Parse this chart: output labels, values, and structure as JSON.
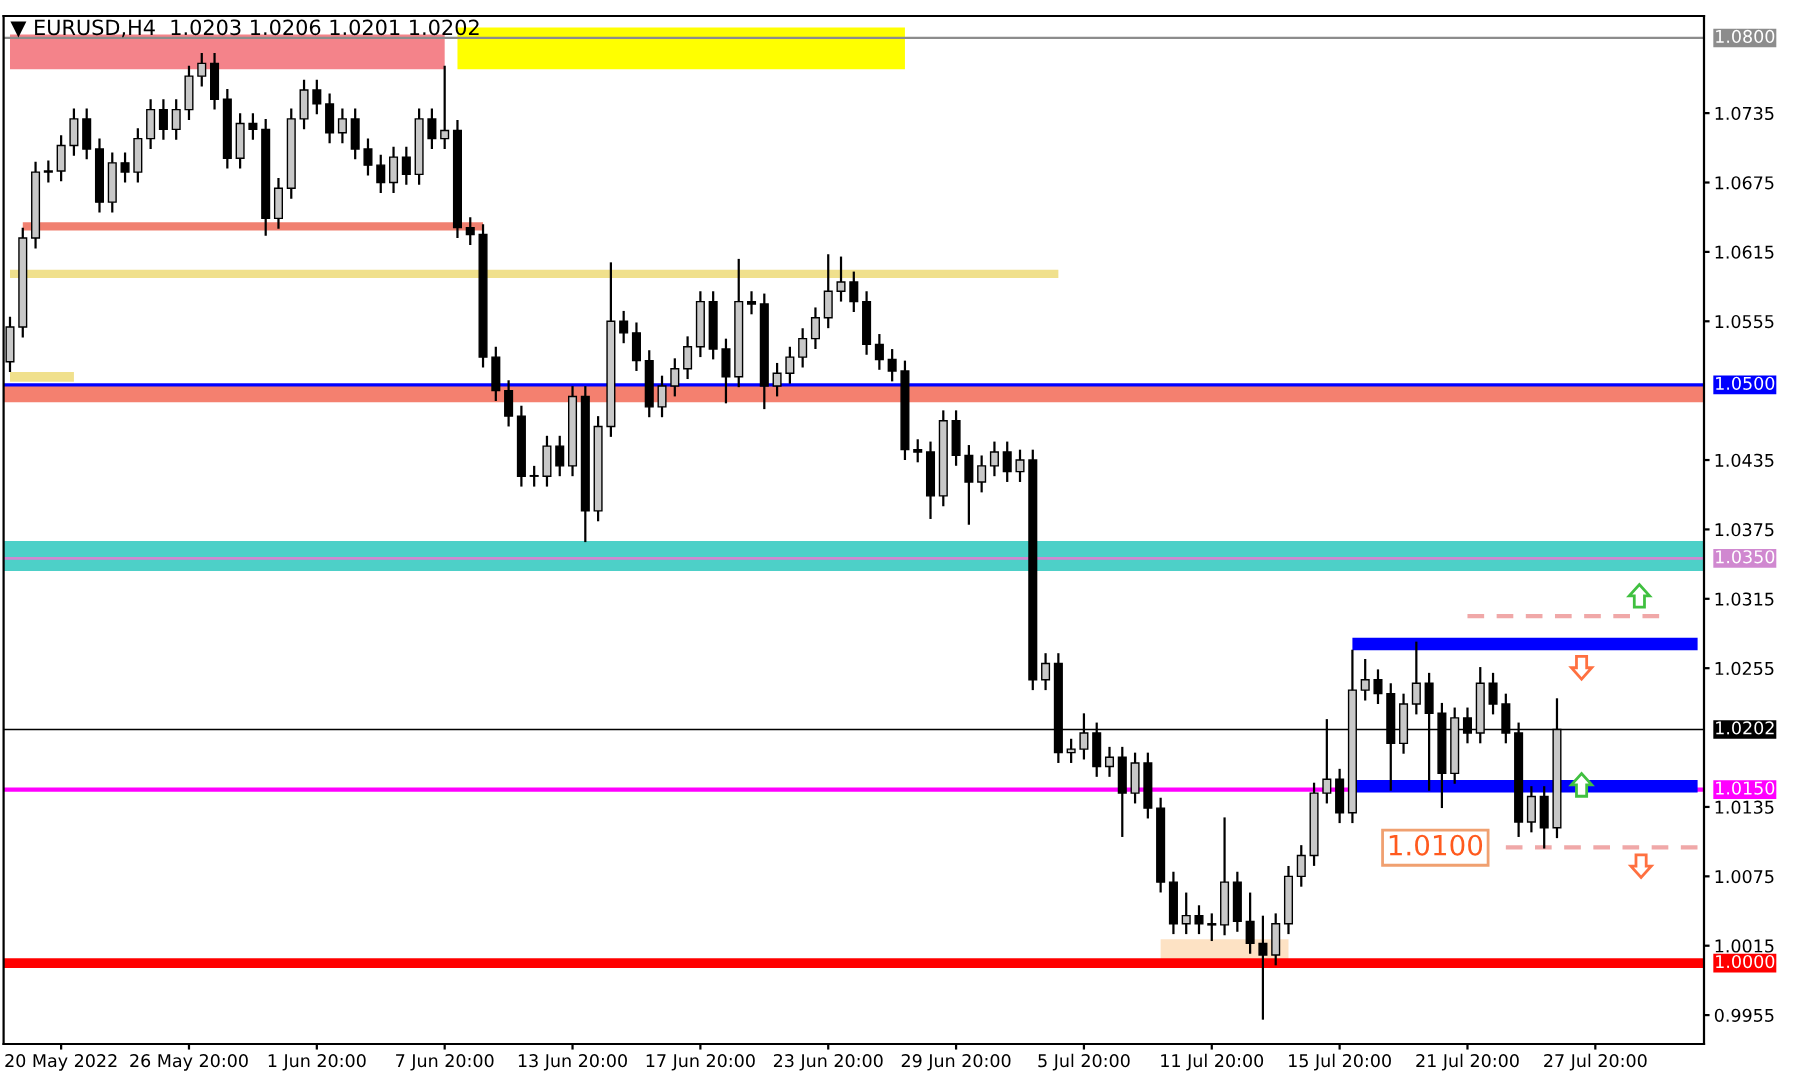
{
  "chart_data": {
    "type": "candlestick",
    "title": "▼ EURUSD,H4  1.0203 1.0206 1.0201 1.0202",
    "categories": [
      null,
      null,
      null,
      null,
      "20 May 2022",
      null,
      null,
      null,
      null,
      null,
      null,
      null,
      null,
      null,
      "26 May 20:00",
      null,
      null,
      null,
      null,
      null,
      null,
      null,
      null,
      null,
      "1 Jun 20:00",
      null,
      null,
      null,
      null,
      null,
      null,
      null,
      null,
      null,
      "7 Jun 20:00",
      null,
      null,
      null,
      null,
      null,
      null,
      null,
      null,
      null,
      "13 Jun 20:00",
      null,
      null,
      null,
      null,
      null,
      null,
      null,
      null,
      null,
      "17 Jun 20:00",
      null,
      null,
      null,
      null,
      null,
      null,
      null,
      null,
      null,
      "23 Jun 20:00",
      null,
      null,
      null,
      null,
      null,
      null,
      null,
      null,
      null,
      "29 Jun 20:00",
      null,
      null,
      null,
      null,
      null,
      null,
      null,
      null,
      null,
      "5 Jul 20:00",
      null,
      null,
      null,
      null,
      null,
      null,
      null,
      null,
      null,
      "11 Jul 20:00",
      null,
      null,
      null,
      null,
      null,
      null,
      null,
      null,
      null,
      "15 Jul 20:00",
      null,
      null,
      null,
      null,
      null,
      null,
      null,
      null,
      null,
      "21 Jul 20:00",
      null,
      null,
      null,
      null,
      null,
      null,
      null,
      null,
      null,
      "27 Jul 20:00",
      null,
      null,
      null,
      null,
      null,
      null,
      null,
      null
    ],
    "ohlc": [
      [
        1.052,
        1.0558,
        1.0512,
        1.055
      ],
      [
        1.055,
        1.0635,
        1.0542,
        1.0627
      ],
      [
        1.0627,
        1.0692,
        1.0619,
        1.0684
      ],
      [
        1.0684,
        1.0693,
        1.0676,
        1.0685
      ],
      [
        1.0685,
        1.0715,
        1.0677,
        1.0707
      ],
      [
        1.0707,
        1.0738,
        1.0699,
        1.073
      ],
      [
        1.073,
        1.0738,
        1.0696,
        1.0704
      ],
      [
        1.0704,
        1.0712,
        1.065,
        1.0658
      ],
      [
        1.0658,
        1.07,
        1.065,
        1.0692
      ],
      [
        1.0692,
        1.07,
        1.0676,
        1.0684
      ],
      [
        1.0684,
        1.0721,
        1.0676,
        1.0713
      ],
      [
        1.0713,
        1.0746,
        1.0705,
        1.0738
      ],
      [
        1.0738,
        1.0746,
        1.0713,
        1.0721
      ],
      [
        1.0721,
        1.0746,
        1.0713,
        1.0738
      ],
      [
        1.0738,
        1.0775,
        1.073,
        1.0767
      ],
      [
        1.0767,
        1.0786,
        1.0759,
        1.0778
      ],
      [
        1.0778,
        1.0786,
        1.0739,
        1.0747
      ],
      [
        1.0747,
        1.0755,
        1.0688,
        1.0696
      ],
      [
        1.0696,
        1.0734,
        1.0688,
        1.0726
      ],
      [
        1.0726,
        1.0734,
        1.0713,
        1.0721
      ],
      [
        1.0721,
        1.0729,
        1.063,
        1.0644
      ],
      [
        1.0644,
        1.0678,
        1.0636,
        1.067
      ],
      [
        1.067,
        1.0738,
        1.0662,
        1.073
      ],
      [
        1.073,
        1.0763,
        1.0722,
        1.0755
      ],
      [
        1.0755,
        1.0763,
        1.0735,
        1.0743
      ],
      [
        1.0743,
        1.0751,
        1.071,
        1.0718
      ],
      [
        1.0718,
        1.0738,
        1.071,
        1.073
      ],
      [
        1.073,
        1.0738,
        1.0696,
        1.0704
      ],
      [
        1.0704,
        1.0712,
        1.0682,
        1.069
      ],
      [
        1.069,
        1.0698,
        1.0667,
        1.0675
      ],
      [
        1.0675,
        1.0705,
        1.0667,
        1.0697
      ],
      [
        1.0697,
        1.0705,
        1.0674,
        1.0682
      ],
      [
        1.0682,
        1.0738,
        1.0674,
        1.073
      ],
      [
        1.073,
        1.0738,
        1.0705,
        1.0713
      ],
      [
        1.0713,
        1.0775,
        1.0705,
        1.072
      ],
      [
        1.072,
        1.0728,
        1.0628,
        1.0636
      ],
      [
        1.0636,
        1.0644,
        1.0622,
        1.063
      ],
      [
        1.063,
        1.0638,
        1.0516,
        1.0524
      ],
      [
        1.0524,
        1.0532,
        1.0487,
        1.0495
      ],
      [
        1.0495,
        1.0503,
        1.0465,
        1.0473
      ],
      [
        1.0473,
        1.0481,
        1.0413,
        1.0421
      ],
      [
        1.0421,
        1.0429,
        1.0413,
        1.0421
      ],
      [
        1.0421,
        1.0455,
        1.0413,
        1.0447
      ],
      [
        1.0447,
        1.0455,
        1.0422,
        1.043
      ],
      [
        1.043,
        1.0498,
        1.0422,
        1.049
      ],
      [
        1.049,
        1.0498,
        1.0365,
        1.0391
      ],
      [
        1.0391,
        1.0472,
        1.0383,
        1.0464
      ],
      [
        1.0464,
        1.0605,
        1.0456,
        1.0555
      ],
      [
        1.0555,
        1.0563,
        1.0537,
        1.0545
      ],
      [
        1.0545,
        1.0553,
        1.0513,
        1.0521
      ],
      [
        1.0521,
        1.0529,
        1.0473,
        1.0481
      ],
      [
        1.0481,
        1.0507,
        1.0473,
        1.0499
      ],
      [
        1.0499,
        1.0522,
        1.0491,
        1.0514
      ],
      [
        1.0514,
        1.0541,
        1.0506,
        1.0533
      ],
      [
        1.0533,
        1.058,
        1.0525,
        1.0572
      ],
      [
        1.0572,
        1.058,
        1.0523,
        1.0531
      ],
      [
        1.0531,
        1.0539,
        1.0485,
        1.0507
      ],
      [
        1.0507,
        1.0608,
        1.0499,
        1.0572
      ],
      [
        1.0572,
        1.058,
        1.0562,
        1.057
      ],
      [
        1.057,
        1.0578,
        1.048,
        1.0499
      ],
      [
        1.0499,
        1.0518,
        1.0491,
        1.051
      ],
      [
        1.051,
        1.0532,
        1.0502,
        1.0524
      ],
      [
        1.0524,
        1.0548,
        1.0516,
        1.054
      ],
      [
        1.054,
        1.0566,
        1.0532,
        1.0558
      ],
      [
        1.0558,
        1.0612,
        1.055,
        1.0581
      ],
      [
        1.0581,
        1.061,
        1.0573,
        1.0589
      ],
      [
        1.0589,
        1.0597,
        1.0564,
        1.0572
      ],
      [
        1.0572,
        1.058,
        1.0527,
        1.0535
      ],
      [
        1.0535,
        1.0543,
        1.0514,
        1.0522
      ],
      [
        1.0522,
        1.053,
        1.0504,
        1.0512
      ],
      [
        1.0512,
        1.052,
        1.0436,
        1.0444
      ],
      [
        1.0444,
        1.0452,
        1.0434,
        1.0442
      ],
      [
        1.0442,
        1.045,
        1.0385,
        1.0404
      ],
      [
        1.0404,
        1.0477,
        1.0396,
        1.0469
      ],
      [
        1.0469,
        1.0477,
        1.0431,
        1.0439
      ],
      [
        1.0439,
        1.0447,
        1.038,
        1.0416
      ],
      [
        1.0416,
        1.0438,
        1.0408,
        1.043
      ],
      [
        1.043,
        1.045,
        1.0422,
        1.0442
      ],
      [
        1.0442,
        1.045,
        1.0417,
        1.0425
      ],
      [
        1.0425,
        1.0443,
        1.0417,
        1.0435
      ],
      [
        1.0435,
        1.0443,
        1.0237,
        1.0245
      ],
      [
        1.0245,
        1.0267,
        1.0237,
        1.0259
      ],
      [
        1.0259,
        1.0267,
        1.0174,
        1.0182
      ],
      [
        1.0182,
        1.0193,
        1.0174,
        1.0185
      ],
      [
        1.0185,
        1.0215,
        1.0177,
        1.0199
      ],
      [
        1.0199,
        1.0207,
        1.0162,
        1.017
      ],
      [
        1.017,
        1.0186,
        1.0162,
        1.0178
      ],
      [
        1.0178,
        1.0186,
        1.011,
        1.0147
      ],
      [
        1.0147,
        1.0181,
        1.0139,
        1.0173
      ],
      [
        1.0173,
        1.0181,
        1.0126,
        1.0134
      ],
      [
        1.0134,
        1.0142,
        1.0062,
        1.007
      ],
      [
        1.007,
        1.0078,
        1.0026,
        1.0034
      ],
      [
        1.0034,
        1.006,
        1.0026,
        1.0041
      ],
      [
        1.0041,
        1.0049,
        1.0026,
        1.0034
      ],
      [
        1.0034,
        1.0042,
        1.002,
        1.0033
      ],
      [
        1.0033,
        1.0125,
        1.0025,
        1.007
      ],
      [
        1.007,
        1.0078,
        1.0028,
        1.0036
      ],
      [
        1.0036,
        1.006,
        1.0009,
        1.0017
      ],
      [
        1.0017,
        1.004,
        0.9952,
        1.0007
      ],
      [
        1.0007,
        1.0042,
        0.9999,
        1.0034
      ],
      [
        1.0034,
        1.0083,
        1.0026,
        1.0075
      ],
      [
        1.0075,
        1.0101,
        1.0067,
        1.0093
      ],
      [
        1.0093,
        1.0155,
        1.0085,
        1.0147
      ],
      [
        1.0147,
        1.021,
        1.0139,
        1.0159
      ],
      [
        1.0159,
        1.0167,
        1.0122,
        1.013
      ],
      [
        1.013,
        1.027,
        1.0122,
        1.0236
      ],
      [
        1.0236,
        1.0262,
        1.0228,
        1.0245
      ],
      [
        1.0245,
        1.0253,
        1.0225,
        1.0233
      ],
      [
        1.0233,
        1.0241,
        1.015,
        1.019
      ],
      [
        1.019,
        1.0232,
        1.0182,
        1.0224
      ],
      [
        1.0224,
        1.0277,
        1.0216,
        1.0242
      ],
      [
        1.0242,
        1.025,
        1.015,
        1.0216
      ],
      [
        1.0216,
        1.0224,
        1.0135,
        1.0164
      ],
      [
        1.0164,
        1.022,
        1.0156,
        1.0212
      ],
      [
        1.0212,
        1.022,
        1.0191,
        1.0199
      ],
      [
        1.0199,
        1.0255,
        1.0191,
        1.0242
      ],
      [
        1.0242,
        1.025,
        1.0216,
        1.0224
      ],
      [
        1.0224,
        1.0232,
        1.0191,
        1.0199
      ],
      [
        1.0199,
        1.0207,
        1.011,
        1.0122
      ],
      [
        1.0122,
        1.0152,
        1.0114,
        1.0144
      ],
      [
        1.0144,
        1.0152,
        1.01,
        1.0117
      ],
      [
        1.0117,
        1.0228,
        1.0109,
        1.0202
      ],
      null,
      null,
      null,
      null,
      null,
      null,
      null,
      null,
      null,
      null,
      null
    ],
    "series": [
      {
        "type": "line",
        "color": "#ffff00",
        "values": [
          null,
          null,
          null,
          null,
          null,
          null,
          null,
          null,
          null,
          null,
          null,
          null,
          null,
          null,
          null,
          null,
          null,
          null,
          null,
          null,
          null,
          null,
          null,
          null,
          null,
          null,
          null,
          null,
          null,
          null,
          null,
          null,
          null,
          null,
          null,
          1.0791,
          1.0791,
          1.0791,
          1.0791,
          1.0791,
          1.0791,
          1.0791,
          1.0791,
          1.0791,
          1.0791,
          1.0791,
          1.0791,
          1.0791,
          1.0791,
          1.0791,
          1.0791,
          1.0791,
          1.0791,
          1.0791,
          1.0791,
          1.0791,
          1.0791,
          1.0791,
          1.0791,
          1.0791,
          1.0791,
          1.0791,
          1.0791,
          1.0791,
          1.0791,
          1.0791,
          1.0791,
          1.0791,
          1.0791,
          1.0791,
          1.0791,
          null,
          null,
          null,
          null,
          null,
          null,
          null,
          null,
          null,
          null,
          null,
          null,
          null,
          null,
          null,
          null,
          null,
          null,
          null,
          null,
          null,
          null,
          null,
          null,
          null,
          null,
          null,
          null,
          null,
          null,
          null,
          null,
          null,
          null,
          null,
          null,
          null,
          null,
          null,
          null,
          null,
          null,
          null,
          null,
          null,
          null,
          null,
          null,
          null,
          null,
          null,
          null,
          null,
          null,
          null,
          null,
          null,
          null,
          null,
          null,
          null,
          null
        ]
      },
      {
        "type": "line",
        "color": "#f4838a",
        "values": [
          1.0788,
          1.0788,
          1.0788,
          1.0788,
          1.0788,
          1.0788,
          1.0788,
          1.0788,
          1.0788,
          1.0788,
          1.0788,
          1.0788,
          1.0788,
          1.0788,
          1.0788,
          1.0788,
          1.0788,
          1.0788,
          1.0788,
          1.0788,
          1.0788,
          1.0788,
          1.0788,
          1.0788,
          1.0788,
          1.0788,
          1.0788,
          1.0788,
          1.0788,
          1.0788,
          1.0788,
          1.0788,
          1.0788,
          1.0788,
          1.0788,
          null,
          null,
          null,
          null,
          null,
          null,
          null,
          null,
          null,
          null,
          null,
          null,
          null,
          null,
          null,
          null,
          null,
          null,
          null,
          null,
          null,
          null,
          null,
          null,
          null,
          null,
          null,
          null,
          null,
          null,
          null,
          null,
          null,
          null,
          null,
          null,
          null,
          null,
          null,
          null,
          null,
          null,
          null,
          null,
          null,
          null,
          null,
          null,
          null,
          null,
          null,
          null,
          null,
          null,
          null,
          null,
          null,
          null,
          null,
          null,
          null,
          null,
          null,
          null,
          null,
          null,
          null,
          null,
          null,
          null,
          null,
          null,
          null,
          null,
          null,
          null,
          null,
          null,
          null,
          null,
          null,
          null,
          null,
          null,
          null,
          null,
          null,
          null,
          null,
          null,
          null,
          null,
          null,
          null,
          null,
          null,
          null,
          null
        ]
      },
      {
        "type": "line",
        "color": "#f08070",
        "values": [
          null,
          1.0637,
          1.0637,
          1.0637,
          1.0637,
          1.0637,
          1.0637,
          1.0637,
          1.0637,
          1.0637,
          1.0637,
          1.0637,
          1.0637,
          1.0637,
          1.0637,
          1.0637,
          1.0637,
          1.0637,
          1.0637,
          1.0637,
          1.0637,
          1.0637,
          1.0637,
          1.0637,
          1.0637,
          1.0637,
          1.0637,
          1.0637,
          1.0637,
          1.0637,
          1.0637,
          1.0637,
          1.0637,
          1.0637,
          1.0637,
          1.0637,
          1.0637,
          1.0637,
          null,
          null,
          null,
          null,
          null,
          null,
          null,
          null,
          null,
          null,
          null,
          null,
          null,
          null,
          null,
          null,
          null,
          null,
          null,
          null,
          null,
          null,
          null,
          null,
          null,
          null,
          null,
          null,
          null,
          null,
          null,
          null,
          null,
          null,
          null,
          null,
          null,
          null,
          null,
          null,
          null,
          null,
          null,
          null,
          null,
          null,
          null,
          null,
          null,
          null,
          null,
          null,
          null,
          null,
          null,
          null,
          null,
          null,
          null,
          null,
          null,
          null,
          null,
          null,
          null,
          null,
          null,
          null,
          null,
          null,
          null,
          null,
          null,
          null,
          null,
          null,
          null,
          null,
          null,
          null,
          null,
          null,
          null,
          null,
          null,
          null,
          null,
          null,
          null,
          null,
          null,
          null,
          null,
          null,
          null
        ]
      },
      {
        "type": "line",
        "color": "#f0e08c",
        "values": [
          1.0596,
          1.0596,
          1.0596,
          1.0596,
          1.0596,
          1.0596,
          1.0596,
          1.0596,
          1.0596,
          1.0596,
          1.0596,
          1.0596,
          1.0596,
          1.0596,
          1.0596,
          1.0596,
          1.0596,
          1.0596,
          1.0596,
          1.0596,
          1.0596,
          1.0596,
          1.0596,
          1.0596,
          1.0596,
          1.0596,
          1.0596,
          1.0596,
          1.0596,
          1.0596,
          1.0596,
          1.0596,
          1.0596,
          1.0596,
          1.0596,
          1.0596,
          1.0596,
          1.0596,
          1.0596,
          1.0596,
          1.0596,
          1.0596,
          1.0596,
          1.0596,
          1.0596,
          1.0596,
          1.0596,
          1.0596,
          1.0596,
          1.0596,
          1.0596,
          1.0596,
          1.0596,
          1.0596,
          1.0596,
          1.0596,
          1.0596,
          1.0596,
          1.0596,
          1.0596,
          1.0596,
          1.0596,
          1.0596,
          1.0596,
          1.0596,
          1.0596,
          1.0596,
          1.0596,
          1.0596,
          1.0596,
          1.0596,
          1.0596,
          1.0596,
          1.0596,
          1.0596,
          1.0596,
          1.0596,
          1.0596,
          1.0596,
          1.0596,
          1.0596,
          1.0596,
          1.0596,
          null,
          null,
          null,
          null,
          null,
          null,
          null,
          null,
          null,
          null,
          null,
          null,
          null,
          null,
          null,
          null,
          null,
          null,
          null,
          null,
          null,
          null,
          null,
          null,
          null,
          null,
          null,
          null,
          null,
          null,
          null,
          null,
          null,
          null,
          null,
          null,
          null,
          null,
          null,
          null,
          null,
          null,
          null,
          null,
          null,
          null,
          null,
          null,
          null,
          null
        ]
      },
      {
        "type": "line",
        "color": "#f0e08c",
        "values": [
          1.0507,
          1.0507,
          1.0507,
          1.0507,
          1.0507,
          1.0507,
          null,
          null,
          null,
          null,
          null,
          null,
          null,
          null,
          null,
          null,
          null,
          null,
          null,
          null,
          null,
          null,
          null,
          null,
          null,
          null,
          null,
          null,
          null,
          null,
          null,
          null,
          null,
          null,
          null,
          null,
          null,
          null,
          null,
          null,
          null,
          null,
          null,
          null,
          null,
          null,
          null,
          null,
          null,
          null,
          null,
          null,
          null,
          null,
          null,
          null,
          null,
          null,
          null,
          null,
          null,
          null,
          null,
          null,
          null,
          null,
          null,
          null,
          null,
          null,
          null,
          null,
          null,
          null,
          null,
          null,
          null,
          null,
          null,
          null,
          null,
          null,
          null,
          null,
          null,
          null,
          null,
          null,
          null,
          null,
          null,
          null,
          null,
          null,
          null,
          null,
          null,
          null,
          null,
          null,
          null,
          null,
          null,
          null,
          null,
          null,
          null,
          null,
          null,
          null,
          null,
          null,
          null,
          null,
          null,
          null,
          null,
          null,
          null,
          null,
          null,
          null,
          null,
          null,
          null,
          null,
          null,
          null,
          null,
          null,
          null,
          null,
          null
        ]
      },
      {
        "type": "line",
        "color": "#0000ff",
        "values": [
          null,
          null,
          null,
          null,
          null,
          null,
          null,
          null,
          null,
          null,
          null,
          null,
          null,
          null,
          null,
          null,
          null,
          null,
          null,
          null,
          null,
          null,
          null,
          null,
          null,
          null,
          null,
          null,
          null,
          null,
          null,
          null,
          null,
          null,
          null,
          null,
          null,
          null,
          null,
          null,
          null,
          null,
          null,
          null,
          null,
          null,
          null,
          null,
          null,
          null,
          null,
          null,
          null,
          null,
          null,
          null,
          null,
          null,
          null,
          null,
          null,
          null,
          null,
          null,
          null,
          null,
          null,
          null,
          null,
          null,
          null,
          null,
          null,
          null,
          null,
          null,
          null,
          null,
          null,
          null,
          null,
          null,
          null,
          null,
          null,
          null,
          null,
          null,
          null,
          null,
          null,
          null,
          null,
          null,
          null,
          null,
          null,
          null,
          null,
          null,
          null,
          null,
          null,
          null,
          null,
          1.0276,
          1.0276,
          1.0276,
          1.0276,
          1.0276,
          1.0276,
          1.0276,
          1.0276,
          1.0276,
          1.0276,
          1.0276,
          1.0276,
          1.0276,
          1.0276,
          1.0276,
          1.0276,
          1.0276,
          1.0276,
          1.0276,
          1.0276,
          1.0276,
          1.0276,
          1.0276,
          1.0276,
          1.0276,
          1.0276,
          1.0276,
          1.0276
        ]
      },
      {
        "type": "line",
        "color": "#0000ff",
        "values": [
          null,
          null,
          null,
          null,
          null,
          null,
          null,
          null,
          null,
          null,
          null,
          null,
          null,
          null,
          null,
          null,
          null,
          null,
          null,
          null,
          null,
          null,
          null,
          null,
          null,
          null,
          null,
          null,
          null,
          null,
          null,
          null,
          null,
          null,
          null,
          null,
          null,
          null,
          null,
          null,
          null,
          null,
          null,
          null,
          null,
          null,
          null,
          null,
          null,
          null,
          null,
          null,
          null,
          null,
          null,
          null,
          null,
          null,
          null,
          null,
          null,
          null,
          null,
          null,
          null,
          null,
          null,
          null,
          null,
          null,
          null,
          null,
          null,
          null,
          null,
          null,
          null,
          null,
          null,
          null,
          null,
          null,
          null,
          null,
          null,
          null,
          null,
          null,
          null,
          null,
          null,
          null,
          null,
          null,
          null,
          null,
          null,
          null,
          null,
          null,
          null,
          null,
          null,
          null,
          null,
          1.0153,
          1.0153,
          1.0153,
          1.0153,
          1.0153,
          1.0153,
          1.0153,
          1.0153,
          1.0153,
          1.0153,
          1.0153,
          1.0153,
          1.0153,
          1.0153,
          1.0153,
          1.0153,
          1.0153,
          1.0153,
          1.0153,
          1.0153,
          1.0153,
          1.0153,
          1.0153,
          1.0153,
          1.0153,
          1.0153,
          1.0153,
          1.0153
        ]
      },
      {
        "type": "line",
        "color": "#fde2c4",
        "values": [
          null,
          null,
          null,
          null,
          null,
          null,
          null,
          null,
          null,
          null,
          null,
          null,
          null,
          null,
          null,
          null,
          null,
          null,
          null,
          null,
          null,
          null,
          null,
          null,
          null,
          null,
          null,
          null,
          null,
          null,
          null,
          null,
          null,
          null,
          null,
          null,
          null,
          null,
          null,
          null,
          null,
          null,
          null,
          null,
          null,
          null,
          null,
          null,
          null,
          null,
          null,
          null,
          null,
          null,
          null,
          null,
          null,
          null,
          null,
          null,
          null,
          null,
          null,
          null,
          null,
          null,
          null,
          null,
          null,
          null,
          null,
          null,
          null,
          null,
          null,
          null,
          null,
          null,
          null,
          null,
          null,
          null,
          null,
          null,
          null,
          null,
          null,
          null,
          null,
          null,
          1.0011,
          1.0011,
          1.0011,
          1.0011,
          1.0011,
          1.0011,
          1.0011,
          1.0011,
          1.0011,
          1.0011,
          1.0011,
          null,
          null,
          null,
          null,
          null,
          null,
          null,
          null,
          null,
          null,
          null,
          null,
          null,
          null,
          null,
          null,
          null,
          null,
          null,
          null,
          null,
          null,
          null,
          null,
          null,
          null,
          null,
          null,
          null,
          null,
          null,
          null
        ]
      },
      {
        "type": "line",
        "color": "#f0a8a8",
        "line_style": "dashed",
        "values": [
          null,
          null,
          null,
          null,
          null,
          null,
          null,
          null,
          null,
          null,
          null,
          null,
          null,
          null,
          null,
          null,
          null,
          null,
          null,
          null,
          null,
          null,
          null,
          null,
          null,
          null,
          null,
          null,
          null,
          null,
          null,
          null,
          null,
          null,
          null,
          null,
          null,
          null,
          null,
          null,
          null,
          null,
          null,
          null,
          null,
          null,
          null,
          null,
          null,
          null,
          null,
          null,
          null,
          null,
          null,
          null,
          null,
          null,
          null,
          null,
          null,
          null,
          null,
          null,
          null,
          null,
          null,
          null,
          null,
          null,
          null,
          null,
          null,
          null,
          null,
          null,
          null,
          null,
          null,
          null,
          null,
          null,
          null,
          null,
          null,
          null,
          null,
          null,
          null,
          null,
          null,
          null,
          null,
          null,
          null,
          null,
          null,
          null,
          null,
          null,
          null,
          null,
          null,
          null,
          null,
          null,
          null,
          null,
          null,
          null,
          null,
          null,
          null,
          null,
          1.03,
          1.03,
          1.03,
          1.03,
          1.03,
          1.03,
          1.03,
          1.03,
          1.03,
          1.03,
          1.03,
          1.03,
          1.03,
          1.03,
          1.03,
          1.03,
          null,
          null,
          null
        ]
      },
      {
        "type": "line",
        "color": "#f0a8a8",
        "line_style": "dashed",
        "values": [
          null,
          null,
          null,
          null,
          null,
          null,
          null,
          null,
          null,
          null,
          null,
          null,
          null,
          null,
          null,
          null,
          null,
          null,
          null,
          null,
          null,
          null,
          null,
          null,
          null,
          null,
          null,
          null,
          null,
          null,
          null,
          null,
          null,
          null,
          null,
          null,
          null,
          null,
          null,
          null,
          null,
          null,
          null,
          null,
          null,
          null,
          null,
          null,
          null,
          null,
          null,
          null,
          null,
          null,
          null,
          null,
          null,
          null,
          null,
          null,
          null,
          null,
          null,
          null,
          null,
          null,
          null,
          null,
          null,
          null,
          null,
          null,
          null,
          null,
          null,
          null,
          null,
          null,
          null,
          null,
          null,
          null,
          null,
          null,
          null,
          null,
          null,
          null,
          null,
          null,
          null,
          null,
          null,
          null,
          null,
          null,
          null,
          null,
          null,
          null,
          null,
          null,
          null,
          null,
          null,
          null,
          null,
          null,
          null,
          null,
          null,
          null,
          null,
          null,
          null,
          null,
          null,
          1.01,
          1.01,
          1.01,
          1.01,
          1.01,
          1.01,
          1.01,
          1.01,
          1.01,
          1.01,
          1.01,
          1.01,
          1.01,
          1.01,
          1.01,
          1.01
        ]
      }
    ],
    "bands": [
      {
        "axis": "y",
        "from": 1.0485,
        "to": 1.0499,
        "label": null,
        "color": "#f4806f"
      },
      {
        "axis": "y",
        "from": 1.0339,
        "to": 1.0365,
        "label": null,
        "color": "#4dd0c8"
      }
    ],
    "ref_lines": [
      {
        "axis": "y",
        "value": 1.08,
        "label": "1.0800",
        "color": "#8c8c8c"
      },
      {
        "axis": "y",
        "value": 1.05,
        "label": "1.0500",
        "color": "#0000ff"
      },
      {
        "axis": "y",
        "value": 1.035,
        "label": "1.0350",
        "color": "#d088d0"
      },
      {
        "axis": "y",
        "value": 1.0202,
        "label": "1.0202",
        "color": "#000000"
      },
      {
        "axis": "y",
        "value": 1.015,
        "label": "1.0150",
        "color": "#ff00ff"
      },
      {
        "axis": "y",
        "value": 1.0,
        "label": "1.0000",
        "color": "#ff0000"
      }
    ],
    "annotations": [
      "1.0100"
    ],
    "ylim": [
      0.993,
      1.0819
    ],
    "yticks": [
      0.9955,
      1.0015,
      1.0075,
      1.0135,
      1.0255,
      1.0315,
      1.0375,
      1.0435,
      1.0555,
      1.0615,
      1.0675,
      1.0735
    ],
    "grid": false,
    "legend": false
  }
}
